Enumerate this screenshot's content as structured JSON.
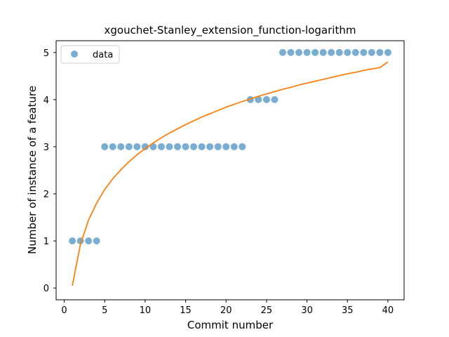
{
  "chart_data": {
    "type": "scatter",
    "title": "xgouchet-Stanley_extension_function-logarithm",
    "xlabel": "Commit number",
    "ylabel": "Number of instance of a feature",
    "xlim": [
      -1,
      42
    ],
    "ylim": [
      -0.25,
      5.25
    ],
    "xticks": [
      0,
      5,
      10,
      15,
      20,
      25,
      30,
      35,
      40
    ],
    "yticks": [
      0,
      1,
      2,
      3,
      4,
      5
    ],
    "grid": false,
    "legend": {
      "position": "top-left",
      "entries": [
        "data"
      ]
    },
    "colors": {
      "data": "#1f77b4",
      "fit": "#ff7f0e"
    },
    "series": [
      {
        "name": "data",
        "kind": "scatter",
        "x": [
          1,
          2,
          3,
          4,
          5,
          6,
          7,
          8,
          9,
          10,
          11,
          12,
          13,
          14,
          15,
          16,
          17,
          18,
          19,
          20,
          21,
          22,
          23,
          24,
          25,
          26,
          27,
          28,
          29,
          30,
          31,
          32,
          33,
          34,
          35,
          36,
          37,
          38,
          39,
          40
        ],
        "y": [
          1,
          1,
          1,
          1,
          3,
          3,
          3,
          3,
          3,
          3,
          3,
          3,
          3,
          3,
          3,
          3,
          3,
          3,
          3,
          3,
          3,
          3,
          4,
          4,
          4,
          4,
          5,
          5,
          5,
          5,
          5,
          5,
          5,
          5,
          5,
          5,
          5,
          5,
          5,
          5
        ]
      },
      {
        "kind": "line",
        "x": [
          1,
          2,
          3,
          4,
          5,
          6,
          7,
          8,
          9,
          10,
          11,
          12,
          13,
          14,
          15,
          16,
          17,
          18,
          19,
          20,
          21,
          22,
          23,
          24,
          25,
          26,
          27,
          28,
          29,
          30,
          31,
          32,
          33,
          34,
          35,
          36,
          37,
          38,
          39,
          40
        ],
        "y": [
          0.05,
          0.92,
          1.44,
          1.8,
          2.09,
          2.32,
          2.51,
          2.68,
          2.83,
          2.96,
          3.08,
          3.19,
          3.29,
          3.38,
          3.47,
          3.55,
          3.63,
          3.7,
          3.77,
          3.84,
          3.9,
          3.96,
          4.01,
          4.07,
          4.12,
          4.17,
          4.22,
          4.26,
          4.31,
          4.35,
          4.39,
          4.43,
          4.47,
          4.51,
          4.55,
          4.58,
          4.62,
          4.65,
          4.68,
          4.8
        ]
      }
    ]
  }
}
